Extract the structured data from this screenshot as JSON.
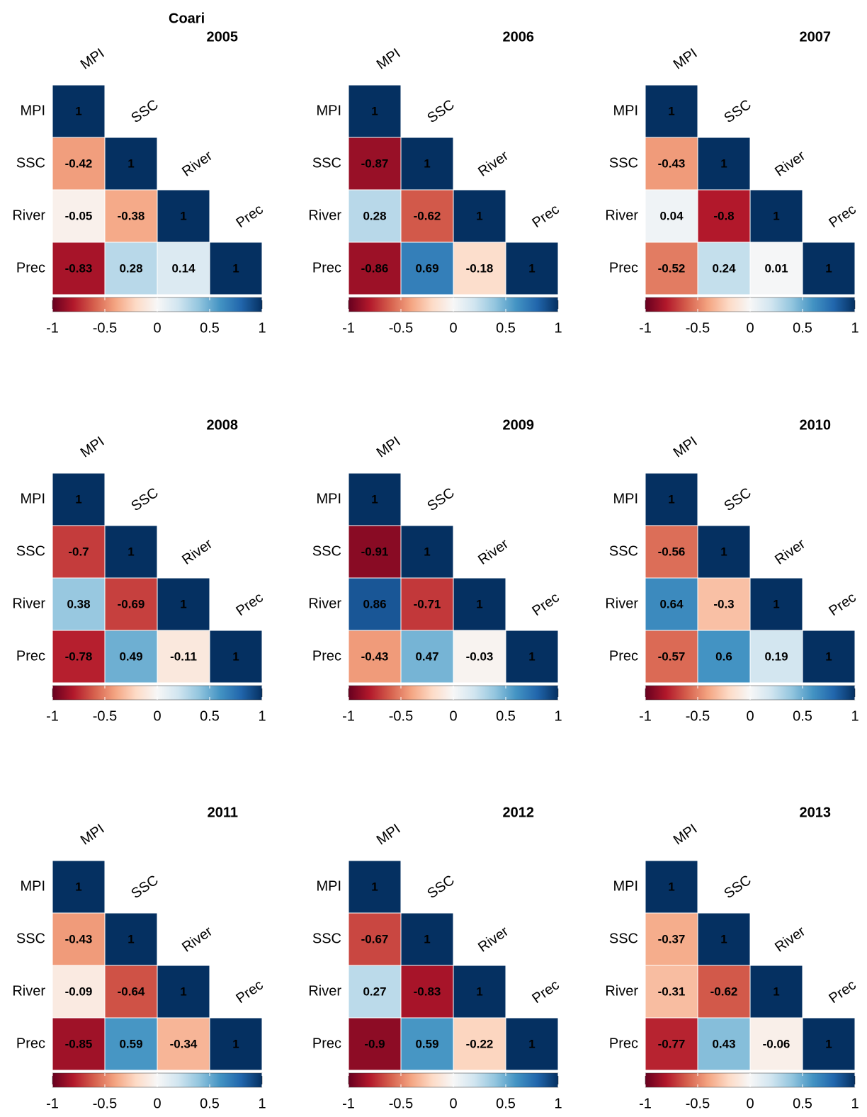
{
  "title": "Coari",
  "chart_data": [
    {
      "type": "heatmap",
      "title": "2005",
      "variables": [
        "MPI",
        "SSC",
        "River",
        "Prec"
      ],
      "values": [
        [
          1,
          null,
          null,
          null
        ],
        [
          -0.42,
          1,
          null,
          null
        ],
        [
          -0.05,
          -0.38,
          1,
          null
        ],
        [
          -0.83,
          0.28,
          0.14,
          1
        ]
      ],
      "zlim": [
        -1,
        1
      ],
      "zticks": [
        -1,
        -0.5,
        0,
        0.5,
        1
      ],
      "colorscale": [
        "#67001f",
        "#b2182b",
        "#d6604d",
        "#f4a582",
        "#fddbc7",
        "#f7f7f7",
        "#d1e5f0",
        "#92c5de",
        "#4393c3",
        "#2166ac",
        "#053061"
      ]
    },
    {
      "type": "heatmap",
      "title": "2006",
      "variables": [
        "MPI",
        "SSC",
        "River",
        "Prec"
      ],
      "values": [
        [
          1,
          null,
          null,
          null
        ],
        [
          -0.87,
          1,
          null,
          null
        ],
        [
          0.28,
          -0.62,
          1,
          null
        ],
        [
          -0.86,
          0.69,
          -0.18,
          1
        ]
      ],
      "zlim": [
        -1,
        1
      ],
      "zticks": [
        -1,
        -0.5,
        0,
        0.5,
        1
      ],
      "colorscale": [
        "#67001f",
        "#b2182b",
        "#d6604d",
        "#f4a582",
        "#fddbc7",
        "#f7f7f7",
        "#d1e5f0",
        "#92c5de",
        "#4393c3",
        "#2166ac",
        "#053061"
      ]
    },
    {
      "type": "heatmap",
      "title": "2007",
      "variables": [
        "MPI",
        "SSC",
        "River",
        "Prec"
      ],
      "values": [
        [
          1,
          null,
          null,
          null
        ],
        [
          -0.43,
          1,
          null,
          null
        ],
        [
          0.04,
          -0.8,
          1,
          null
        ],
        [
          -0.52,
          0.24,
          0.01,
          1
        ]
      ],
      "zlim": [
        -1,
        1
      ],
      "zticks": [
        -1,
        -0.5,
        0,
        0.5,
        1
      ],
      "colorscale": [
        "#67001f",
        "#b2182b",
        "#d6604d",
        "#f4a582",
        "#fddbc7",
        "#f7f7f7",
        "#d1e5f0",
        "#92c5de",
        "#4393c3",
        "#2166ac",
        "#053061"
      ]
    },
    {
      "type": "heatmap",
      "title": "2008",
      "variables": [
        "MPI",
        "SSC",
        "River",
        "Prec"
      ],
      "values": [
        [
          1,
          null,
          null,
          null
        ],
        [
          -0.7,
          1,
          null,
          null
        ],
        [
          0.38,
          -0.69,
          1,
          null
        ],
        [
          -0.78,
          0.49,
          -0.11,
          1
        ]
      ],
      "zlim": [
        -1,
        1
      ],
      "zticks": [
        -1,
        -0.5,
        0,
        0.5,
        1
      ],
      "colorscale": [
        "#67001f",
        "#b2182b",
        "#d6604d",
        "#f4a582",
        "#fddbc7",
        "#f7f7f7",
        "#d1e5f0",
        "#92c5de",
        "#4393c3",
        "#2166ac",
        "#053061"
      ]
    },
    {
      "type": "heatmap",
      "title": "2009",
      "variables": [
        "MPI",
        "SSC",
        "River",
        "Prec"
      ],
      "values": [
        [
          1,
          null,
          null,
          null
        ],
        [
          -0.91,
          1,
          null,
          null
        ],
        [
          0.86,
          -0.71,
          1,
          null
        ],
        [
          -0.43,
          0.47,
          -0.03,
          1
        ]
      ],
      "zlim": [
        -1,
        1
      ],
      "zticks": [
        -1,
        -0.5,
        0,
        0.5,
        1
      ],
      "colorscale": [
        "#67001f",
        "#b2182b",
        "#d6604d",
        "#f4a582",
        "#fddbc7",
        "#f7f7f7",
        "#d1e5f0",
        "#92c5de",
        "#4393c3",
        "#2166ac",
        "#053061"
      ]
    },
    {
      "type": "heatmap",
      "title": "2010",
      "variables": [
        "MPI",
        "SSC",
        "River",
        "Prec"
      ],
      "values": [
        [
          1,
          null,
          null,
          null
        ],
        [
          -0.56,
          1,
          null,
          null
        ],
        [
          0.64,
          -0.3,
          1,
          null
        ],
        [
          -0.57,
          0.6,
          0.19,
          1
        ]
      ],
      "zlim": [
        -1,
        1
      ],
      "zticks": [
        -1,
        -0.5,
        0,
        0.5,
        1
      ],
      "colorscale": [
        "#67001f",
        "#b2182b",
        "#d6604d",
        "#f4a582",
        "#fddbc7",
        "#f7f7f7",
        "#d1e5f0",
        "#92c5de",
        "#4393c3",
        "#2166ac",
        "#053061"
      ]
    },
    {
      "type": "heatmap",
      "title": "2011",
      "variables": [
        "MPI",
        "SSC",
        "River",
        "Prec"
      ],
      "values": [
        [
          1,
          null,
          null,
          null
        ],
        [
          -0.43,
          1,
          null,
          null
        ],
        [
          -0.09,
          -0.64,
          1,
          null
        ],
        [
          -0.85,
          0.59,
          -0.34,
          1
        ]
      ],
      "zlim": [
        -1,
        1
      ],
      "zticks": [
        -1,
        -0.5,
        0,
        0.5,
        1
      ],
      "colorscale": [
        "#67001f",
        "#b2182b",
        "#d6604d",
        "#f4a582",
        "#fddbc7",
        "#f7f7f7",
        "#d1e5f0",
        "#92c5de",
        "#4393c3",
        "#2166ac",
        "#053061"
      ]
    },
    {
      "type": "heatmap",
      "title": "2012",
      "variables": [
        "MPI",
        "SSC",
        "River",
        "Prec"
      ],
      "values": [
        [
          1,
          null,
          null,
          null
        ],
        [
          -0.67,
          1,
          null,
          null
        ],
        [
          0.27,
          -0.83,
          1,
          null
        ],
        [
          -0.9,
          0.59,
          -0.22,
          1
        ]
      ],
      "zlim": [
        -1,
        1
      ],
      "zticks": [
        -1,
        -0.5,
        0,
        0.5,
        1
      ],
      "colorscale": [
        "#67001f",
        "#b2182b",
        "#d6604d",
        "#f4a582",
        "#fddbc7",
        "#f7f7f7",
        "#d1e5f0",
        "#92c5de",
        "#4393c3",
        "#2166ac",
        "#053061"
      ]
    },
    {
      "type": "heatmap",
      "title": "2013",
      "variables": [
        "MPI",
        "SSC",
        "River",
        "Prec"
      ],
      "values": [
        [
          1,
          null,
          null,
          null
        ],
        [
          -0.37,
          1,
          null,
          null
        ],
        [
          -0.31,
          -0.62,
          1,
          null
        ],
        [
          -0.77,
          0.43,
          -0.06,
          1
        ]
      ],
      "zlim": [
        -1,
        1
      ],
      "zticks": [
        -1,
        -0.5,
        0,
        0.5,
        1
      ],
      "colorscale": [
        "#67001f",
        "#b2182b",
        "#d6604d",
        "#f4a582",
        "#fddbc7",
        "#f7f7f7",
        "#d1e5f0",
        "#92c5de",
        "#4393c3",
        "#2166ac",
        "#053061"
      ]
    }
  ]
}
